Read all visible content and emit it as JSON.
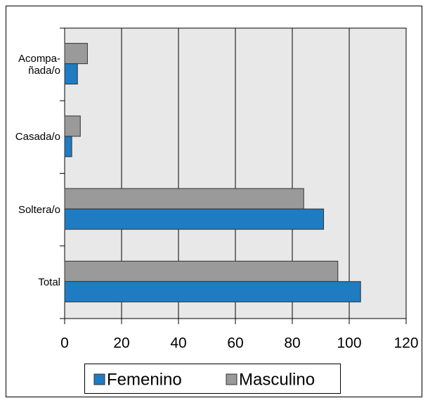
{
  "chart_data": {
    "type": "hbar",
    "categories": [
      "Acompa-\nñada/o",
      "Casada/o",
      "Soltera/o",
      "Total"
    ],
    "series": [
      {
        "name": "Femenino",
        "color": "#1f7bc2",
        "values": [
          4.5,
          2.5,
          91,
          104
        ]
      },
      {
        "name": "Masculino",
        "color": "#9a9a9a",
        "values": [
          8,
          5.5,
          84,
          96
        ]
      }
    ],
    "xlim": [
      0,
      120
    ],
    "xticks": [
      0,
      20,
      40,
      60,
      80,
      100,
      120
    ],
    "grid": true,
    "legend": "bottom"
  }
}
